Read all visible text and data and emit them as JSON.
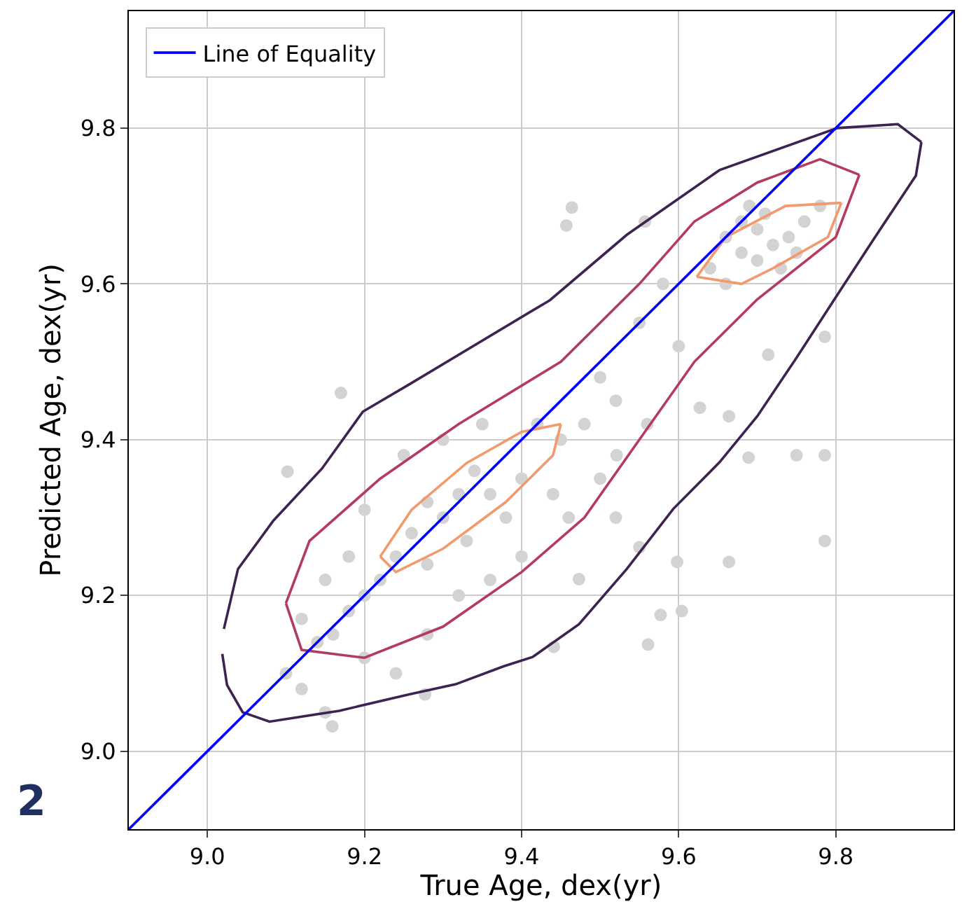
{
  "chart_data": {
    "type": "scatter",
    "xlabel": "True Age, dex(yr)",
    "ylabel": "Predicted Age, dex(yr)",
    "xlim": [
      8.9,
      9.95
    ],
    "ylim": [
      8.9,
      9.95
    ],
    "xticks": [
      {
        "value": 9.0,
        "label": "9.0"
      },
      9.2,
      9.4,
      9.6,
      9.8
    ],
    "yticks": [
      {
        "value": 9.0,
        "label": "9.0"
      },
      9.2,
      9.4,
      9.6,
      9.8
    ],
    "grid": true,
    "legend": "top left",
    "annotations": [
      "2"
    ],
    "series": [
      {
        "color": "#d3d3d3",
        "marker": "circle",
        "x": [
          9.102,
          9.17,
          9.159,
          9.277,
          9.464,
          9.457,
          9.557,
          9.786,
          9.786,
          9.75,
          9.786,
          9.664,
          9.689,
          9.627,
          9.598,
          9.604,
          9.664,
          9.714,
          9.561,
          9.577,
          9.55,
          9.521,
          9.441,
          9.473,
          9.66,
          9.68,
          9.7,
          9.72,
          9.74,
          9.76,
          9.7,
          9.73,
          9.68,
          9.75,
          9.64,
          9.78,
          9.69,
          9.71,
          9.66,
          9.55,
          9.5,
          9.52,
          9.48,
          9.45,
          9.42,
          9.4,
          9.44,
          9.38,
          9.36,
          9.34,
          9.32,
          9.3,
          9.28,
          9.26,
          9.24,
          9.22,
          9.2,
          9.18,
          9.16,
          9.14,
          9.12,
          9.15,
          9.18,
          9.2,
          9.24,
          9.28,
          9.32,
          9.36,
          9.4,
          9.46,
          9.5,
          9.52,
          9.56,
          9.6,
          9.58,
          9.35,
          9.3,
          9.25,
          9.2,
          9.12,
          9.15,
          9.1,
          9.28,
          9.33
        ],
        "values": [
          9.359,
          9.46,
          9.032,
          9.073,
          9.698,
          9.675,
          9.68,
          9.532,
          9.38,
          9.38,
          9.27,
          9.243,
          9.377,
          9.441,
          9.243,
          9.18,
          9.43,
          9.509,
          9.137,
          9.175,
          9.262,
          9.38,
          9.134,
          9.221,
          9.66,
          9.68,
          9.67,
          9.65,
          9.66,
          9.68,
          9.63,
          9.62,
          9.64,
          9.64,
          9.62,
          9.7,
          9.7,
          9.69,
          9.6,
          9.55,
          9.48,
          9.45,
          9.42,
          9.4,
          9.42,
          9.35,
          9.33,
          9.3,
          9.33,
          9.36,
          9.33,
          9.3,
          9.32,
          9.28,
          9.25,
          9.22,
          9.2,
          9.18,
          9.15,
          9.14,
          9.17,
          9.22,
          9.25,
          9.12,
          9.1,
          9.15,
          9.2,
          9.22,
          9.25,
          9.3,
          9.35,
          9.3,
          9.42,
          9.52,
          9.6,
          9.42,
          9.4,
          9.38,
          9.31,
          9.08,
          9.05,
          9.1,
          9.24,
          9.27
        ]
      },
      {
        "type": "line",
        "color": "#3d2352",
        "marker": "none",
        "x": [
          9.021,
          9.039,
          9.084,
          9.146,
          9.198,
          9.257,
          9.436,
          9.534,
          9.652,
          9.802,
          9.879,
          9.909
        ],
        "values": [
          9.157,
          9.234,
          9.296,
          9.363,
          9.436,
          9.471,
          9.579,
          9.663,
          9.746,
          9.8,
          9.805,
          9.782
        ]
      },
      {
        "type": "line",
        "color": "#3d2352",
        "marker": "none",
        "x": [
          9.019,
          9.025,
          9.045,
          9.079,
          9.168,
          9.257,
          9.316,
          9.377,
          9.414,
          9.473,
          9.534,
          9.593,
          9.652,
          9.7,
          9.748,
          9.802,
          9.848,
          9.902,
          9.909
        ],
        "values": [
          9.125,
          9.085,
          9.05,
          9.038,
          9.052,
          9.073,
          9.086,
          9.109,
          9.121,
          9.163,
          9.234,
          9.311,
          9.371,
          9.43,
          9.502,
          9.586,
          9.657,
          9.739,
          9.782
        ]
      },
      {
        "type": "line",
        "color": "#b43a5e",
        "marker": "none",
        "x": [
          9.1,
          9.13,
          9.22,
          9.32,
          9.45,
          9.55,
          9.62,
          9.7,
          9.78,
          9.83
        ],
        "values": [
          9.19,
          9.27,
          9.35,
          9.42,
          9.5,
          9.6,
          9.68,
          9.73,
          9.76,
          9.74
        ]
      },
      {
        "type": "line",
        "color": "#b43a5e",
        "marker": "none",
        "x": [
          9.1,
          9.12,
          9.2,
          9.3,
          9.4,
          9.48,
          9.55,
          9.62,
          9.7,
          9.8,
          9.83
        ],
        "values": [
          9.19,
          9.13,
          9.12,
          9.16,
          9.23,
          9.3,
          9.4,
          9.5,
          9.58,
          9.66,
          9.74
        ]
      },
      {
        "type": "line",
        "color": "#f19a6b",
        "marker": "none",
        "x": [
          9.22,
          9.26,
          9.33,
          9.4,
          9.45
        ],
        "values": [
          9.25,
          9.31,
          9.37,
          9.41,
          9.42
        ]
      },
      {
        "type": "line",
        "color": "#f19a6b",
        "marker": "none",
        "x": [
          9.22,
          9.24,
          9.3,
          9.38,
          9.44,
          9.45
        ],
        "values": [
          9.25,
          9.23,
          9.26,
          9.32,
          9.38,
          9.42
        ]
      },
      {
        "type": "line",
        "color": "#f19a6b",
        "marker": "none",
        "x": [
          9.623,
          9.66,
          9.736,
          9.807
        ],
        "values": [
          9.609,
          9.66,
          9.7,
          9.704
        ]
      },
      {
        "type": "line",
        "color": "#f19a6b",
        "marker": "none",
        "x": [
          9.623,
          9.68,
          9.72,
          9.79,
          9.807
        ],
        "values": [
          9.609,
          9.6,
          9.62,
          9.66,
          9.704
        ]
      },
      {
        "type": "line",
        "name": "Line of Equality",
        "color": "#0000ff",
        "marker": "none",
        "x": [
          8.9,
          9.95
        ],
        "values": [
          8.9,
          9.95
        ]
      }
    ]
  }
}
